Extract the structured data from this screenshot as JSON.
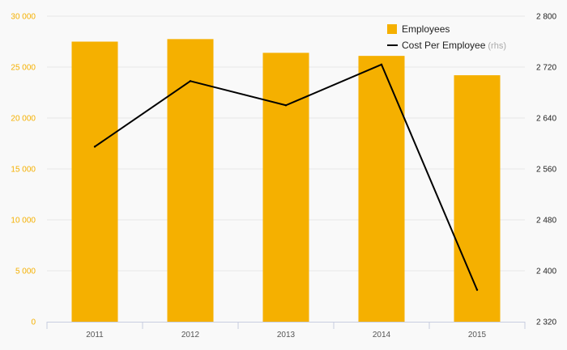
{
  "chart_data": {
    "type": "bar",
    "categories": [
      "2011",
      "2012",
      "2013",
      "2014",
      "2015"
    ],
    "series": [
      {
        "name": "Employees",
        "type": "bar",
        "axis": "left",
        "color": "#f5b000",
        "values": [
          27500,
          27750,
          26400,
          26100,
          24200
        ]
      },
      {
        "name": "Cost Per Employee",
        "name_note": "(rhs)",
        "type": "line",
        "axis": "right",
        "color": "#000000",
        "values": [
          2595,
          2698,
          2660,
          2724,
          2370
        ]
      }
    ],
    "y_left": {
      "ylim": [
        0,
        30000
      ],
      "ticks": [
        0,
        5000,
        10000,
        15000,
        20000,
        25000,
        30000
      ],
      "tick_labels": [
        "0",
        "5 000",
        "10 000",
        "15 000",
        "20 000",
        "25 000",
        "30 000"
      ],
      "color": "#f5b000"
    },
    "y_right": {
      "ylim": [
        2320,
        2800
      ],
      "ticks": [
        2320,
        2400,
        2480,
        2560,
        2640,
        2720,
        2800
      ],
      "tick_labels": [
        "2 320",
        "2 400",
        "2 480",
        "2 560",
        "2 640",
        "2 720",
        "2 800"
      ],
      "color": "#222222"
    },
    "grid": true,
    "legend_position": "top-right"
  }
}
